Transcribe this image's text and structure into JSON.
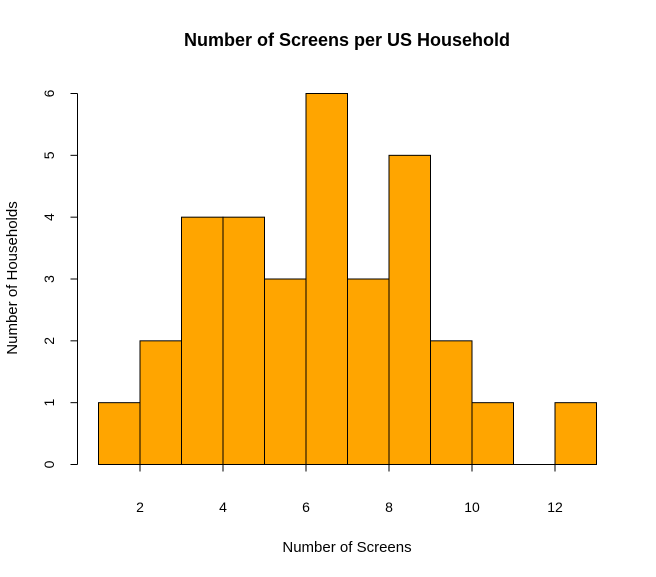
{
  "colors": {
    "bar_fill": "#FFA500",
    "bar_stroke": "#000000",
    "background": "#FFFFFF"
  },
  "chart_data": {
    "type": "bar",
    "title": "Number of Screens per US Household",
    "xlabel": "Number of Screens",
    "ylabel": "Number of Households",
    "bins": [
      {
        "start": 1,
        "end": 2,
        "count": 1
      },
      {
        "start": 2,
        "end": 3,
        "count": 2
      },
      {
        "start": 3,
        "end": 4,
        "count": 4
      },
      {
        "start": 4,
        "end": 5,
        "count": 4
      },
      {
        "start": 5,
        "end": 6,
        "count": 3
      },
      {
        "start": 6,
        "end": 7,
        "count": 6
      },
      {
        "start": 7,
        "end": 8,
        "count": 3
      },
      {
        "start": 8,
        "end": 9,
        "count": 5
      },
      {
        "start": 9,
        "end": 10,
        "count": 2
      },
      {
        "start": 10,
        "end": 11,
        "count": 1
      },
      {
        "start": 11,
        "end": 12,
        "count": 0
      },
      {
        "start": 12,
        "end": 13,
        "count": 1
      }
    ],
    "xlim": [
      1,
      13
    ],
    "ylim": [
      0,
      6
    ],
    "x_ticks": [
      2,
      4,
      6,
      8,
      10,
      12
    ],
    "y_ticks": [
      0,
      1,
      2,
      3,
      4,
      5,
      6
    ],
    "grid": false,
    "legend": "none"
  }
}
